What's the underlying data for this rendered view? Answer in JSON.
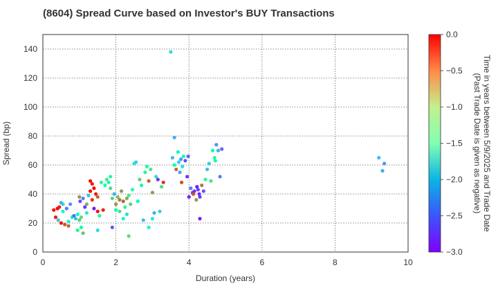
{
  "chart_data": {
    "type": "scatter",
    "title": "(8604)   Spread Curve based on Investor's BUY Transactions",
    "xlabel": "Duration (years)",
    "ylabel": "Spread (bp)",
    "xlim": [
      0,
      10
    ],
    "ylim": [
      0,
      150
    ],
    "x_ticks": [
      "0",
      "2",
      "4",
      "6",
      "8",
      "10"
    ],
    "y_ticks": [
      "0",
      "20",
      "40",
      "60",
      "80",
      "100",
      "120",
      "140"
    ],
    "grid": true,
    "colorbar": {
      "label_line1": "Time in years between 5/9/2025 and Trade Date",
      "label_line2": "(Past Trade Date is given as negative)",
      "range": [
        -3.0,
        0.0
      ],
      "ticks": [
        "0.0",
        "−0.5",
        "−1.0",
        "−1.5",
        "−2.0",
        "−2.5",
        "−3.0"
      ],
      "colormap": "rainbow"
    },
    "points": [
      [
        0.3,
        29,
        -0.05
      ],
      [
        0.35,
        24,
        -0.1
      ],
      [
        0.4,
        30,
        -0.02
      ],
      [
        0.42,
        22,
        -2.2
      ],
      [
        0.45,
        31,
        -0.1
      ],
      [
        0.5,
        20,
        -0.05
      ],
      [
        0.5,
        34,
        -2.3
      ],
      [
        0.55,
        33,
        -2.1
      ],
      [
        0.55,
        28,
        -1.7
      ],
      [
        0.6,
        19,
        -0.3
      ],
      [
        0.65,
        30,
        -2.5
      ],
      [
        0.7,
        21,
        -1.8
      ],
      [
        0.7,
        18,
        -0.4
      ],
      [
        0.75,
        33,
        -2.4
      ],
      [
        0.8,
        24,
        -1.4
      ],
      [
        0.85,
        25,
        -2.6
      ],
      [
        0.9,
        23,
        -2.2
      ],
      [
        0.95,
        26,
        -1.6
      ],
      [
        0.95,
        15,
        -1.3
      ],
      [
        1.0,
        38,
        -0.6
      ],
      [
        1.0,
        22,
        -0.9
      ],
      [
        1.02,
        35,
        -2.7
      ],
      [
        1.05,
        24,
        -1.0
      ],
      [
        1.05,
        17,
        -1.4
      ],
      [
        1.1,
        37,
        -2.5
      ],
      [
        1.1,
        13,
        -0.8
      ],
      [
        1.15,
        31,
        -2.8
      ],
      [
        1.2,
        27,
        -1.9
      ],
      [
        1.2,
        33,
        -0.7
      ],
      [
        1.25,
        39,
        -2.2
      ],
      [
        1.3,
        42,
        -0.05
      ],
      [
        1.3,
        49,
        -0.05
      ],
      [
        1.35,
        47,
        -0.1
      ],
      [
        1.35,
        36,
        -0.2
      ],
      [
        1.4,
        44,
        -0.05
      ],
      [
        1.4,
        30,
        -2.9
      ],
      [
        1.45,
        40,
        -0.1
      ],
      [
        1.5,
        38,
        -0.4
      ],
      [
        1.5,
        28,
        -0.05
      ],
      [
        1.5,
        15,
        -2.0
      ],
      [
        1.55,
        25,
        -1.3
      ],
      [
        1.6,
        48,
        -1.2
      ],
      [
        1.65,
        29,
        -0.15
      ],
      [
        1.7,
        46,
        -1.4
      ],
      [
        1.75,
        50,
        -1.1
      ],
      [
        1.8,
        48,
        -1.6
      ],
      [
        1.85,
        52,
        -1.3
      ],
      [
        1.85,
        44,
        -0.95
      ],
      [
        1.9,
        37,
        -0.9
      ],
      [
        1.9,
        17,
        -2.7
      ],
      [
        1.95,
        40,
        -2.3
      ],
      [
        2.0,
        33,
        -0.6
      ],
      [
        2.0,
        29,
        -1.5
      ],
      [
        2.05,
        38,
        -0.8
      ],
      [
        2.1,
        36,
        -0.5
      ],
      [
        2.1,
        28,
        -1.0
      ],
      [
        2.15,
        42,
        -0.6
      ],
      [
        2.2,
        35,
        -0.4
      ],
      [
        2.2,
        23,
        -1.7
      ],
      [
        2.25,
        31,
        -1.2
      ],
      [
        2.3,
        37,
        -0.7
      ],
      [
        2.3,
        26,
        -2.0
      ],
      [
        2.35,
        39,
        -1.1
      ],
      [
        2.35,
        11,
        -1.0
      ],
      [
        2.4,
        33,
        -0.9
      ],
      [
        2.45,
        43,
        -1.3
      ],
      [
        2.5,
        61,
        -1.9
      ],
      [
        2.55,
        62,
        -2.1
      ],
      [
        2.6,
        35,
        -1.5
      ],
      [
        2.65,
        50,
        -0.9
      ],
      [
        2.7,
        46,
        -1.4
      ],
      [
        2.75,
        22,
        -2.2
      ],
      [
        2.8,
        55,
        -1.2
      ],
      [
        2.85,
        59,
        -1.4
      ],
      [
        2.9,
        49,
        -0.4
      ],
      [
        2.9,
        17,
        -1.8
      ],
      [
        2.95,
        57,
        -1.1
      ],
      [
        3.0,
        41,
        -0.6
      ],
      [
        3.0,
        23,
        -1.9
      ],
      [
        3.05,
        27,
        -2.3
      ],
      [
        3.1,
        52,
        -2.0
      ],
      [
        3.15,
        50,
        -2.8
      ],
      [
        3.2,
        28,
        -2.1
      ],
      [
        3.25,
        45,
        -1.0
      ],
      [
        3.3,
        48,
        -0.2
      ],
      [
        3.5,
        138,
        -2.0
      ],
      [
        3.55,
        65,
        -2.2
      ],
      [
        3.6,
        79,
        -2.3
      ],
      [
        3.6,
        60,
        -1.5
      ],
      [
        3.65,
        57,
        -0.4
      ],
      [
        3.7,
        69,
        -1.5
      ],
      [
        3.72,
        62,
        -2.1
      ],
      [
        3.75,
        55,
        -2.3
      ],
      [
        3.78,
        64,
        -2.4
      ],
      [
        3.8,
        48,
        -0.3
      ],
      [
        3.82,
        59,
        -2.0
      ],
      [
        3.85,
        66,
        -1.6
      ],
      [
        3.9,
        63,
        -2.7
      ],
      [
        3.95,
        52,
        -2.8
      ],
      [
        3.98,
        66,
        -2.6
      ],
      [
        4.0,
        38,
        -2.9
      ],
      [
        4.05,
        44,
        -2.5
      ],
      [
        4.1,
        41,
        -2.8
      ],
      [
        4.12,
        40,
        -0.3
      ],
      [
        4.15,
        42,
        -2.8
      ],
      [
        4.2,
        36,
        -0.6
      ],
      [
        4.22,
        45,
        -2.9
      ],
      [
        4.25,
        43,
        -2.75
      ],
      [
        4.28,
        40,
        -2.85
      ],
      [
        4.3,
        38,
        -2.8
      ],
      [
        4.3,
        23,
        -2.9
      ],
      [
        4.35,
        46,
        -0.5
      ],
      [
        4.4,
        42,
        -2.7
      ],
      [
        4.45,
        50,
        -1.2
      ],
      [
        4.5,
        57,
        -2.2
      ],
      [
        4.55,
        61,
        -2.1
      ],
      [
        4.6,
        49,
        -1.1
      ],
      [
        4.65,
        70,
        -1.6
      ],
      [
        4.7,
        65,
        -1.3
      ],
      [
        4.72,
        63,
        -1.4
      ],
      [
        4.75,
        74,
        -2.4
      ],
      [
        4.8,
        70,
        -2.3
      ],
      [
        4.85,
        52,
        -2.5
      ],
      [
        4.9,
        71,
        -2.6
      ],
      [
        9.2,
        65,
        -2.2
      ],
      [
        9.3,
        56,
        -2.3
      ],
      [
        9.35,
        61,
        -2.4
      ]
    ]
  }
}
